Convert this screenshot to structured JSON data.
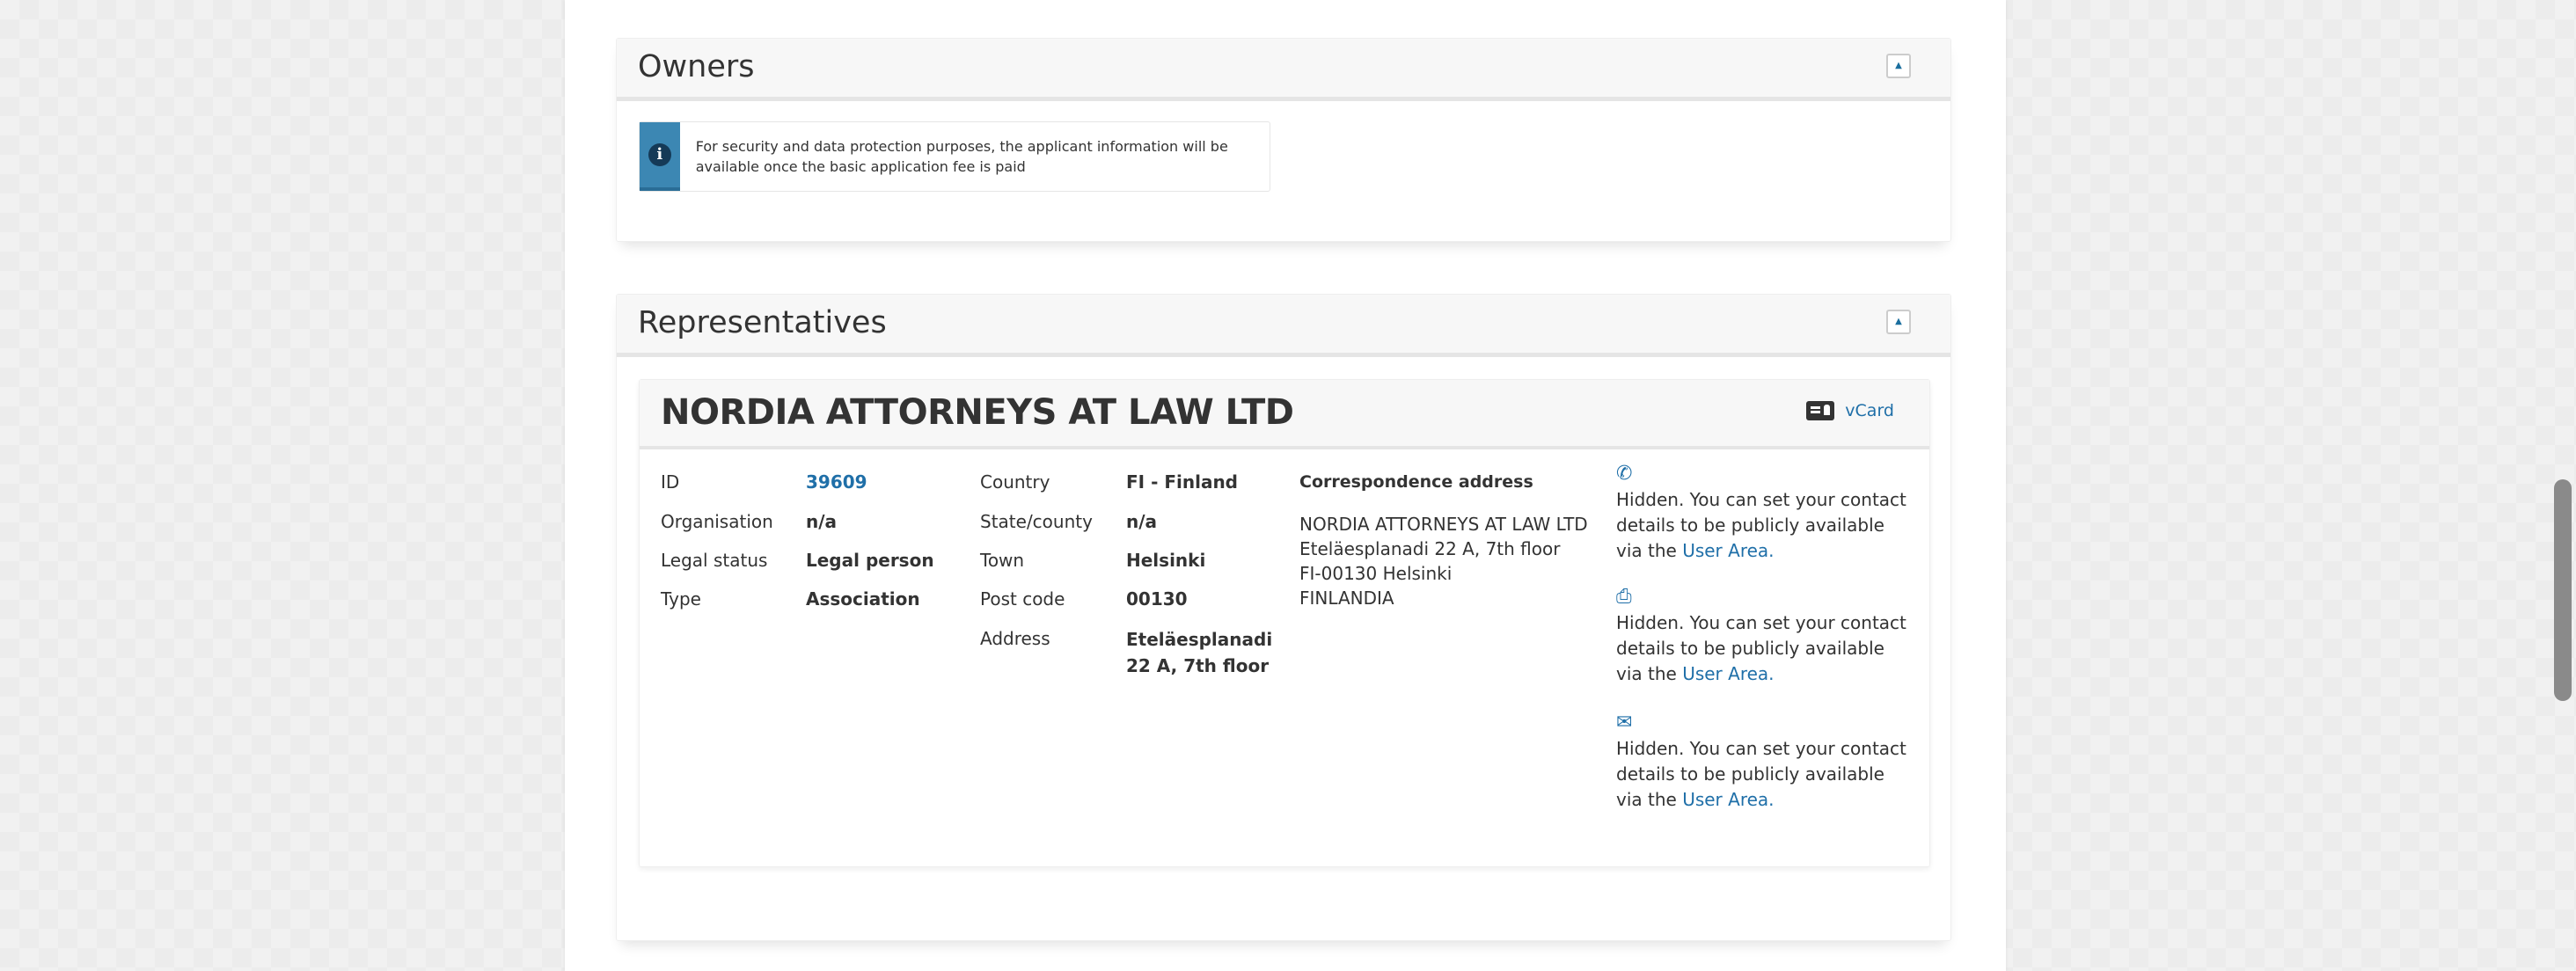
{
  "owners": {
    "title": "Owners",
    "collapse_icon": "caret-up-icon",
    "info_icon": "info-icon",
    "notice": "For security and data protection purposes, the applicant information will be available once the basic application fee is paid"
  },
  "representatives": {
    "title": "Representatives",
    "collapse_icon": "caret-up-icon",
    "card": {
      "name": "NORDIA ATTORNEYS AT LAW LTD",
      "vcard_label": "vCard",
      "fields_left": [
        {
          "label": "ID",
          "value": "39609"
        },
        {
          "label": "Organisation",
          "value": "n/a"
        },
        {
          "label": "Legal status",
          "value": "Legal person"
        },
        {
          "label": "Type",
          "value": "Association"
        }
      ],
      "fields_mid": [
        {
          "label": "Country",
          "value": "FI - Finland"
        },
        {
          "label": "State/county",
          "value": "n/a"
        },
        {
          "label": "Town",
          "value": "Helsinki"
        },
        {
          "label": "Post code",
          "value": "00130"
        },
        {
          "label": "Address",
          "value": "Eteläesplanadi 22 A, 7th floor"
        }
      ],
      "correspondence": {
        "title": "Correspondence address",
        "lines": [
          "NORDIA ATTORNEYS AT LAW LTD",
          "Eteläesplanadi 22 A, 7th floor",
          "FI-00130 Helsinki",
          "FINLANDIA"
        ]
      },
      "contacts": [
        {
          "icon": "phone-icon",
          "text": "Hidden. You can set your contact details to be publicly available via the ",
          "link": "User Area."
        },
        {
          "icon": "fax-icon",
          "text": "Hidden. You can set your contact details to be publicly available via the ",
          "link": "User Area."
        },
        {
          "icon": "email-icon",
          "text": "Hidden. You can set your contact details to be publicly available via the ",
          "link": "User Area."
        }
      ]
    }
  },
  "colors": {
    "accent": "#1f6fa8",
    "info": "#3c87b3"
  }
}
